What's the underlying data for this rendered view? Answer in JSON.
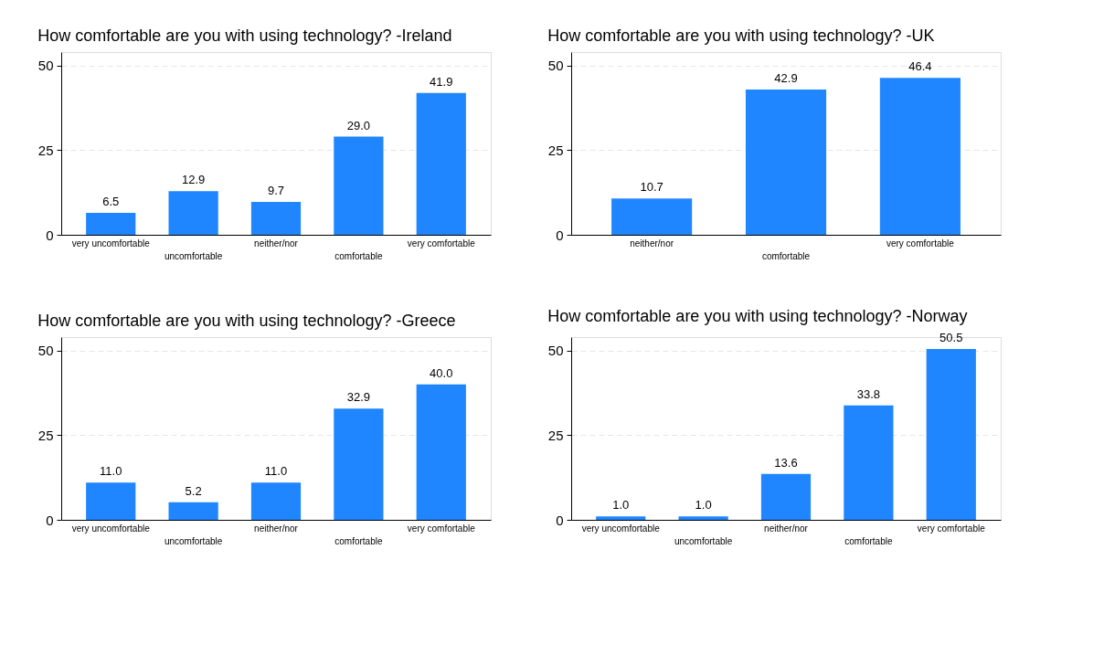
{
  "chart_data": [
    {
      "type": "bar",
      "title": "How comfortable are you with using technology? -Ireland",
      "categories": [
        "very uncomfortable",
        "uncomfortable",
        "neither/nor",
        "comfortable",
        "very comfortable"
      ],
      "values": [
        6.5,
        12.9,
        9.7,
        29.0,
        41.9
      ],
      "value_labels": [
        "6.5",
        "12.9",
        "9.7",
        "29.0",
        "41.9"
      ],
      "color": "#1f86ff",
      "ylim": [
        0,
        54
      ],
      "yticks": [
        0,
        25,
        50
      ],
      "grid": "y"
    },
    {
      "type": "bar",
      "title": "How comfortable are you with using technology? -UK",
      "categories": [
        "neither/nor",
        "comfortable",
        "very comfortable"
      ],
      "values": [
        10.7,
        42.9,
        46.4
      ],
      "value_labels": [
        "10.7",
        "42.9",
        "46.4"
      ],
      "color": "#1f86ff",
      "ylim": [
        0,
        54
      ],
      "yticks": [
        0,
        25,
        50
      ],
      "grid": "y"
    },
    {
      "type": "bar",
      "title": "How comfortable are you with using technology? -Greece",
      "categories": [
        "very uncomfortable",
        "uncomfortable",
        "neither/nor",
        "comfortable",
        "very comfortable"
      ],
      "values": [
        11.0,
        5.2,
        11.0,
        32.9,
        40.0
      ],
      "value_labels": [
        "11.0",
        "5.2",
        "11.0",
        "32.9",
        "40.0"
      ],
      "color": "#1f86ff",
      "ylim": [
        0,
        54
      ],
      "yticks": [
        0,
        25,
        50
      ],
      "grid": "y"
    },
    {
      "type": "bar",
      "title": "How comfortable are you with using technology? -Norway",
      "categories": [
        "very uncomfortable",
        "uncomfortable",
        "neither/nor",
        "comfortable",
        "very comfortable"
      ],
      "values": [
        1.0,
        1.0,
        13.6,
        33.8,
        50.5
      ],
      "value_labels": [
        "1.0",
        "1.0",
        "13.6",
        "33.8",
        "50.5"
      ],
      "color": "#1f86ff",
      "ylim": [
        0,
        54
      ],
      "yticks": [
        0,
        25,
        50
      ],
      "grid": "y"
    }
  ]
}
